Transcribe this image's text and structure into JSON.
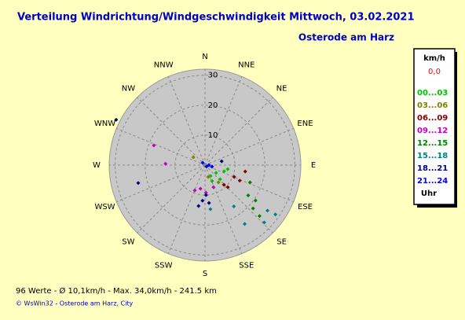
{
  "chart_data": {
    "type": "polar-scatter",
    "title": "Verteilung Windrichtung/Windgeschwindigkeit  Mittwoch, 03.02.2021",
    "subtitle": "Osterode am Harz",
    "directions": [
      "N",
      "NNE",
      "NE",
      "ENE",
      "E",
      "ESE",
      "SE",
      "SSE",
      "S",
      "SSW",
      "SW",
      "WSW",
      "W",
      "WNW",
      "NW",
      "NNW"
    ],
    "rlim": [
      0,
      32
    ],
    "rticks": [
      10,
      20,
      30
    ],
    "legend_title": "km/h",
    "calm_label": "0,0",
    "legend_footer": "Uhr",
    "series": [
      {
        "name": "00...03",
        "color": "#00c000",
        "x": [
          125,
          108,
          156,
          133,
          100,
          153
        ],
        "values": [
          4.5,
          6.7,
          5.8,
          6.9,
          7.7,
          4.1
        ]
      },
      {
        "name": "03...06",
        "color": "#808000",
        "x": [
          304,
          165,
          142
        ],
        "values": [
          4.7,
          4.1,
          7.3
        ]
      },
      {
        "name": "06...09",
        "color": "#800000",
        "x": [
          99,
          114,
          112,
          134,
          136
        ],
        "values": [
          13.6,
          12.7,
          10.5,
          10.6,
          9.1
        ]
      },
      {
        "name": "09...12",
        "color": "#c000c0",
        "x": [
          191,
          178,
          159,
          202,
          291,
          272
        ],
        "values": [
          8.0,
          9.2,
          7.9,
          9.1,
          18.3,
          13.2
        ]
      },
      {
        "name": "12...15",
        "color": "#008000",
        "x": [
          125,
          125,
          111,
          132,
          133
        ],
        "values": [
          17.6,
          20.6,
          16.1,
          21.6,
          24.9
        ]
      },
      {
        "name": "15...18",
        "color": "#008080",
        "x": [
          125,
          126,
          134,
          146,
          145,
          173
        ],
        "values": [
          28.7,
          25.8,
          27.5,
          23.7,
          16.8,
          14.8
        ]
      },
      {
        "name": "18...21",
        "color": "#000080",
        "x": [
          297,
          255,
          178,
          184,
          189,
          174,
          77
        ],
        "values": [
          33.3,
          23.1,
          10.0,
          11.9,
          13.8,
          12.7,
          5.7
        ]
      },
      {
        "name": "21...24",
        "color": "#0000ff",
        "x": [
          315,
          90,
          102,
          135
        ],
        "values": [
          1.1,
          1.3,
          2.4,
          0.7
        ]
      }
    ],
    "summary": "96 Werte   -   Ø 10,1km/h  -  Max. 34,0km/h   -   241.5 km",
    "footer": "© WsWin32  -  Osterode am Harz, City"
  }
}
